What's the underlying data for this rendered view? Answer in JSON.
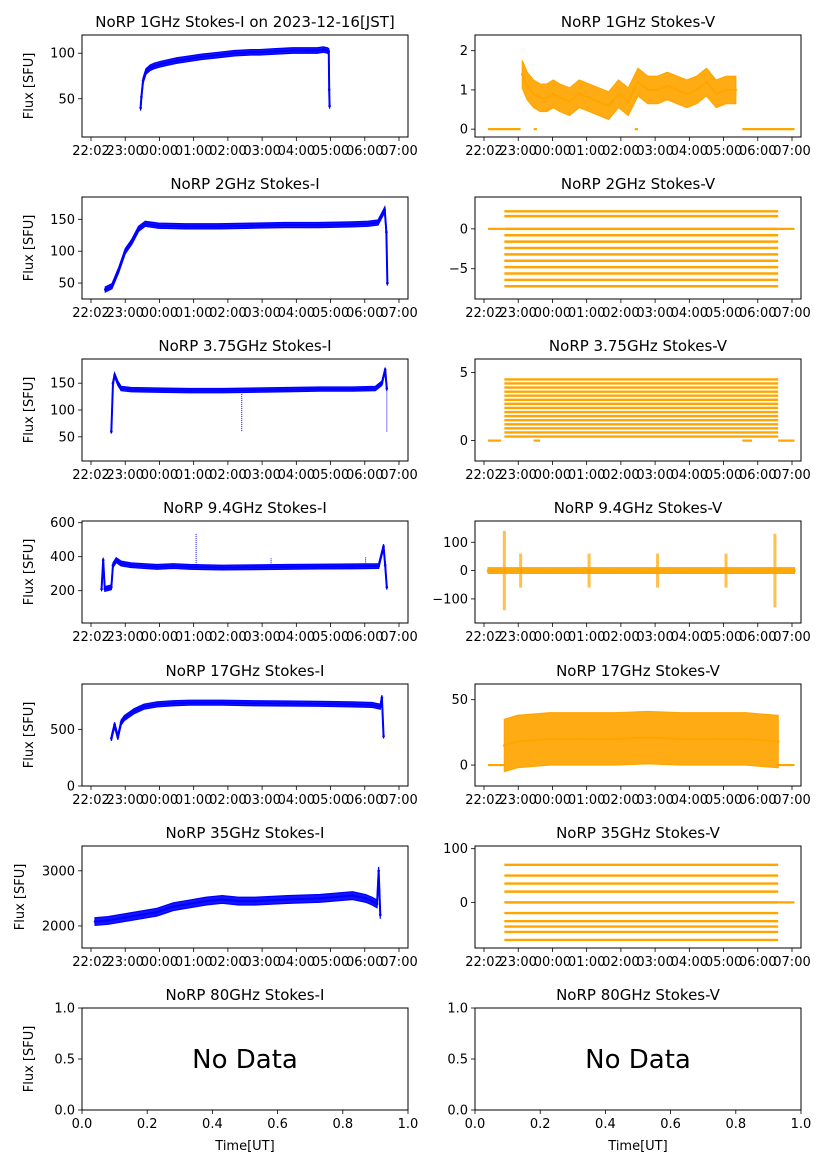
{
  "figure": {
    "background": "#ffffff",
    "colors": {
      "stokes_i": "#0000ff",
      "stokes_v": "#ffa500"
    }
  },
  "chart_data": [
    {
      "type": "scatter",
      "title": "NoRP 1GHz Stokes-I on 2023-12-16[JST]",
      "ylabel": "Flux [SFU]",
      "xlabel": "",
      "xlim": [
        -0.3,
        7.6
      ],
      "ylim": [
        8,
        120
      ],
      "yticks": [
        50,
        100
      ],
      "xticks": [
        "22:02",
        "23:00",
        "00:00",
        "01:00",
        "02:00",
        "03:00",
        "04:00",
        "05:00",
        "06:00",
        "07:00"
      ],
      "series": [
        {
          "color": "#0000ff",
          "x": [
            1.12,
            1.14,
            1.18,
            1.25,
            1.35,
            1.45,
            1.6,
            1.8,
            2.0,
            2.3,
            2.6,
            3.0,
            3.4,
            3.8,
            4.0,
            4.4,
            4.8,
            5.2,
            5.4,
            5.55,
            5.65,
            5.68,
            5.69,
            5.7
          ],
          "y": [
            40,
            52,
            70,
            80,
            84,
            86,
            88,
            90,
            92,
            94,
            96,
            98,
            100,
            101,
            101,
            102,
            103,
            103,
            103,
            104,
            103,
            102,
            60,
            42
          ],
          "band": 3
        }
      ]
    },
    {
      "type": "scatter",
      "title": "NoRP 1GHz Stokes-V",
      "ylabel": "",
      "xlabel": "",
      "xlim": [
        -0.3,
        9.7
      ],
      "ylim": [
        -0.2,
        2.4
      ],
      "yticks": [
        0,
        1,
        2
      ],
      "xticks": [
        "22:02",
        "23:00",
        "00:00",
        "01:00",
        "02:00",
        "03:00",
        "04:00",
        "05:00",
        "06:00",
        "07:00"
      ],
      "series": [
        {
          "color": "#ffa500",
          "x": [
            1.15,
            1.3,
            1.5,
            1.7,
            1.9,
            2.1,
            2.3,
            2.6,
            2.9,
            3.2,
            3.5,
            3.8,
            4.1,
            4.4,
            4.7,
            5.0,
            5.3,
            5.6,
            5.9,
            6.2,
            6.5,
            6.8,
            7.1,
            7.4,
            7.7
          ],
          "y": [
            1.4,
            1.1,
            0.9,
            0.8,
            0.8,
            0.9,
            0.8,
            0.7,
            0.9,
            0.8,
            0.7,
            0.6,
            0.9,
            0.7,
            1.2,
            1.0,
            1.0,
            1.1,
            1.0,
            0.9,
            1.0,
            1.2,
            0.9,
            1.0,
            1.0
          ],
          "band": 0.35
        }
      ],
      "flat_segments": [
        [
          0.1,
          1.1,
          0
        ],
        [
          1.5,
          1.6,
          0
        ],
        [
          4.6,
          4.7,
          0
        ],
        [
          7.9,
          9.5,
          0
        ]
      ]
    },
    {
      "type": "scatter",
      "title": "NoRP 2GHz Stokes-I",
      "ylabel": "Flux [SFU]",
      "xlabel": "",
      "xlim": [
        -0.1,
        9.7
      ],
      "ylim": [
        25,
        185
      ],
      "yticks": [
        50,
        100,
        150
      ],
      "xticks": [
        "22:02",
        "23:00",
        "00:00",
        "01:00",
        "02:00",
        "03:00",
        "04:00",
        "05:00",
        "06:00",
        "07:00"
      ],
      "series": [
        {
          "color": "#0000ff",
          "x": [
            0.6,
            0.8,
            1.0,
            1.2,
            1.4,
            1.6,
            1.8,
            2.2,
            3.0,
            4.0,
            5.0,
            6.0,
            7.0,
            8.0,
            8.5,
            8.8,
            9.0,
            9.05,
            9.08
          ],
          "y": [
            40,
            45,
            70,
            100,
            115,
            135,
            143,
            140,
            139,
            139,
            140,
            141,
            141,
            142,
            143,
            145,
            165,
            130,
            50
          ],
          "band": 4
        }
      ]
    },
    {
      "type": "scatter",
      "title": "NoRP 2GHz Stokes-V",
      "ylabel": "",
      "xlabel": "",
      "xlim": [
        -0.3,
        9.7
      ],
      "ylim": [
        -8.8,
        4
      ],
      "yticks": [
        -5,
        0
      ],
      "xticks": [
        "22:02",
        "23:00",
        "00:00",
        "01:00",
        "02:00",
        "03:00",
        "04:00",
        "05:00",
        "06:00",
        "07:00"
      ],
      "levels": [
        2.2,
        1.6,
        0,
        -0.8,
        -1.6,
        -2.4,
        -3.2,
        -4.0,
        -4.8,
        -5.6,
        -6.4,
        -7.2
      ],
      "level_range": [
        0.6,
        9.0
      ],
      "flat_segments": [
        [
          0.1,
          0.6,
          0
        ],
        [
          9.0,
          9.5,
          0
        ]
      ]
    },
    {
      "type": "scatter",
      "title": "NoRP 3.75GHz Stokes-I",
      "ylabel": "Flux [SFU]",
      "xlabel": "",
      "xlim": [
        -0.3,
        9.7
      ],
      "ylim": [
        5,
        195
      ],
      "yticks": [
        50,
        100,
        150
      ],
      "xticks": [
        "22:02",
        "23:00",
        "00:00",
        "01:00",
        "02:00",
        "03:00",
        "04:00",
        "05:00",
        "06:00",
        "07:00"
      ],
      "series": [
        {
          "color": "#0000ff",
          "x": [
            0.6,
            0.65,
            0.7,
            0.8,
            0.9,
            1.2,
            2.0,
            3.0,
            4.0,
            5.0,
            6.0,
            7.0,
            8.0,
            8.7,
            8.9,
            9.0,
            9.05
          ],
          "y": [
            60,
            150,
            165,
            150,
            140,
            138,
            137,
            136,
            136,
            137,
            138,
            139,
            139,
            140,
            150,
            175,
            140
          ],
          "band": 4
        }
      ],
      "spikes": [
        [
          4.6,
          60
        ],
        [
          9.05,
          60
        ]
      ]
    },
    {
      "type": "scatter",
      "title": "NoRP 3.75GHz Stokes-V",
      "ylabel": "",
      "xlabel": "",
      "xlim": [
        -0.3,
        9.7
      ],
      "ylim": [
        -1.5,
        6
      ],
      "yticks": [
        0,
        5
      ],
      "xticks": [
        "22:02",
        "23:00",
        "00:00",
        "01:00",
        "02:00",
        "03:00",
        "04:00",
        "05:00",
        "06:00",
        "07:00"
      ],
      "levels": [
        0.3,
        0.6,
        0.9,
        1.2,
        1.5,
        1.8,
        2.1,
        2.4,
        2.7,
        3.0,
        3.3,
        3.6,
        3.9,
        4.2,
        4.5
      ],
      "level_range": [
        0.6,
        9.0
      ],
      "flat_segments": [
        [
          0.1,
          0.5,
          0
        ],
        [
          1.5,
          1.7,
          0
        ],
        [
          7.9,
          8.2,
          0
        ],
        [
          9.0,
          9.5,
          0
        ]
      ]
    },
    {
      "type": "scatter",
      "title": "NoRP 9.4GHz Stokes-I",
      "ylabel": "Flux [SFU]",
      "xlabel": "",
      "xlim": [
        -0.3,
        9.7
      ],
      "ylim": [
        10,
        610
      ],
      "yticks": [
        200,
        400,
        600
      ],
      "xticks": [
        "22:02",
        "23:00",
        "00:00",
        "01:00",
        "02:00",
        "03:00",
        "04:00",
        "05:00",
        "06:00",
        "07:00"
      ],
      "series": [
        {
          "color": "#0000ff",
          "x": [
            0.3,
            0.35,
            0.4,
            0.6,
            0.65,
            0.75,
            0.9,
            1.2,
            1.6,
            2.0,
            2.5,
            3.0,
            3.5,
            4.0,
            5.0,
            6.0,
            7.0,
            8.0,
            8.8,
            8.95,
            9.0,
            9.05
          ],
          "y": [
            210,
            380,
            210,
            220,
            350,
            380,
            360,
            350,
            345,
            340,
            345,
            340,
            338,
            336,
            338,
            340,
            342,
            343,
            345,
            460,
            350,
            220
          ],
          "band": 14
        }
      ],
      "spikes": [
        [
          3.2,
          540
        ],
        [
          5.5,
          390
        ],
        [
          8.4,
          400
        ]
      ]
    },
    {
      "type": "scatter",
      "title": "NoRP 9.4GHz Stokes-V",
      "ylabel": "",
      "xlabel": "",
      "xlim": [
        -0.3,
        9.7
      ],
      "ylim": [
        -185,
        175
      ],
      "yticks": [
        -100,
        0,
        100
      ],
      "xticks": [
        "22:02",
        "23:00",
        "00:00",
        "01:00",
        "02:00",
        "03:00",
        "04:00",
        "05:00",
        "06:00",
        "07:00"
      ],
      "series": [
        {
          "color": "#ffa500",
          "x": [
            0.1,
            0.5,
            1.0,
            2.0,
            3.0,
            4.0,
            5.0,
            6.0,
            7.0,
            8.0,
            9.0,
            9.5
          ],
          "y": [
            0,
            0,
            0,
            0,
            0,
            0,
            0,
            0,
            0,
            0,
            0,
            0
          ],
          "band": 10
        }
      ],
      "bursts": [
        [
          0.6,
          140
        ],
        [
          1.1,
          60
        ],
        [
          3.2,
          60
        ],
        [
          5.3,
          60
        ],
        [
          7.4,
          60
        ],
        [
          8.9,
          130
        ]
      ]
    },
    {
      "type": "scatter",
      "title": "NoRP 17GHz Stokes-I",
      "ylabel": "Flux [SFU]",
      "xlabel": "",
      "xlim": [
        -0.3,
        9.7
      ],
      "ylim": [
        0,
        900
      ],
      "yticks": [
        0,
        500
      ],
      "xticks": [
        "22:02",
        "23:00",
        "00:00",
        "01:00",
        "02:00",
        "03:00",
        "04:00",
        "05:00",
        "06:00",
        "07:00"
      ],
      "series": [
        {
          "color": "#0000ff",
          "x": [
            0.6,
            0.7,
            0.8,
            0.9,
            1.0,
            1.3,
            1.6,
            2.0,
            2.5,
            3.0,
            4.0,
            5.0,
            6.0,
            7.0,
            8.0,
            8.6,
            8.85,
            8.9,
            8.95
          ],
          "y": [
            420,
            540,
            430,
            560,
            600,
            660,
            700,
            720,
            730,
            735,
            735,
            730,
            728,
            725,
            720,
            715,
            700,
            780,
            440
          ],
          "band": 22
        }
      ]
    },
    {
      "type": "scatter",
      "title": "NoRP 17GHz Stokes-V",
      "ylabel": "",
      "xlabel": "",
      "xlim": [
        -0.3,
        9.7
      ],
      "ylim": [
        -16,
        62
      ],
      "yticks": [
        0,
        50
      ],
      "xticks": [
        "22:02",
        "23:00",
        "00:00",
        "01:00",
        "02:00",
        "03:00",
        "04:00",
        "05:00",
        "06:00",
        "07:00"
      ],
      "series": [
        {
          "color": "#ffa500",
          "x": [
            0.6,
            1.0,
            2.0,
            3.0,
            4.0,
            5.0,
            6.0,
            7.0,
            8.0,
            9.0
          ],
          "y": [
            15,
            18,
            20,
            20,
            20,
            21,
            20,
            20,
            20,
            18
          ],
          "band": 20
        }
      ],
      "flat_segments": [
        [
          0.1,
          0.6,
          0
        ],
        [
          9.0,
          9.5,
          0
        ]
      ]
    },
    {
      "type": "scatter",
      "title": "NoRP 35GHz Stokes-I",
      "ylabel": "Flux [SFU]",
      "xlabel": "",
      "xlim": [
        -0.3,
        9.7
      ],
      "ylim": [
        1600,
        3450
      ],
      "yticks": [
        2000,
        3000
      ],
      "xticks": [
        "22:02",
        "23:00",
        "00:00",
        "01:00",
        "02:00",
        "03:00",
        "04:00",
        "05:00",
        "06:00",
        "07:00"
      ],
      "series": [
        {
          "color": "#0000ff",
          "x": [
            0.1,
            0.5,
            1.0,
            1.5,
            2.0,
            2.5,
            3.0,
            3.5,
            4.0,
            4.5,
            5.0,
            6.0,
            7.0,
            8.0,
            8.4,
            8.6,
            8.75,
            8.8,
            8.85
          ],
          "y": [
            2080,
            2100,
            2150,
            2200,
            2250,
            2350,
            2400,
            2450,
            2480,
            2450,
            2450,
            2480,
            2500,
            2550,
            2500,
            2450,
            2400,
            3000,
            2200
          ],
          "band": 70
        }
      ]
    },
    {
      "type": "scatter",
      "title": "NoRP 35GHz Stokes-V",
      "ylabel": "",
      "xlabel": "",
      "xlim": [
        -0.3,
        9.7
      ],
      "ylim": [
        -85,
        105
      ],
      "yticks": [
        0,
        100
      ],
      "xticks": [
        "22:02",
        "23:00",
        "00:00",
        "01:00",
        "02:00",
        "03:00",
        "04:00",
        "05:00",
        "06:00",
        "07:00"
      ],
      "levels": [
        70,
        50,
        35,
        20,
        0,
        -20,
        -35,
        -45,
        -55,
        -70
      ],
      "level_range": [
        0.6,
        9.0
      ],
      "flat_segments": [
        [
          9.0,
          9.5,
          0
        ]
      ]
    },
    {
      "type": "scatter",
      "title": "NoRP 80GHz Stokes-I",
      "ylabel": "Flux [SFU]",
      "xlabel": "Time[UT]",
      "xlim": [
        0,
        1
      ],
      "ylim": [
        0,
        1
      ],
      "xticks": [
        "0.0",
        "0.2",
        "0.4",
        "0.6",
        "0.8",
        "1.0"
      ],
      "yticks": [
        "0.0",
        "0.5",
        "1.0"
      ],
      "annotation": "No Data"
    },
    {
      "type": "scatter",
      "title": "NoRP 80GHz Stokes-V",
      "ylabel": "",
      "xlabel": "Time[UT]",
      "xlim": [
        0,
        1
      ],
      "ylim": [
        0,
        1
      ],
      "xticks": [
        "0.0",
        "0.2",
        "0.4",
        "0.6",
        "0.8",
        "1.0"
      ],
      "yticks": [
        "0.0",
        "0.5",
        "1.0"
      ],
      "annotation": "No Data"
    }
  ]
}
